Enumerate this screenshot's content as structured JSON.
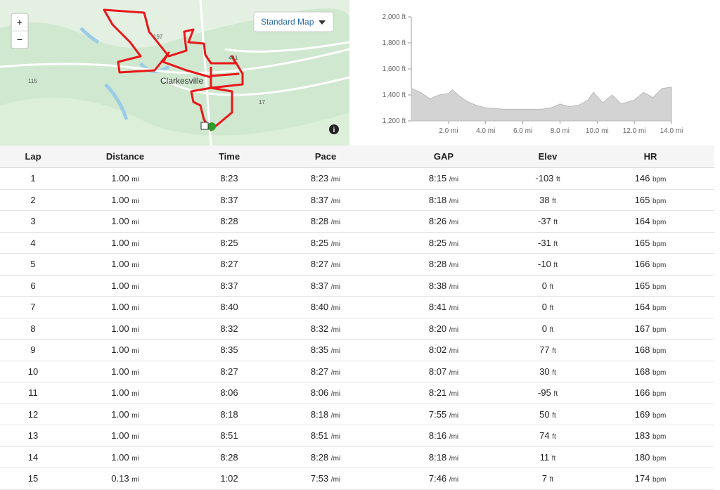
{
  "map": {
    "zoom_in": "+",
    "zoom_out": "−",
    "style_button": "Standard Map",
    "town": "Clarkesville",
    "roads": [
      "115",
      "197",
      "441",
      "17"
    ],
    "info": "i"
  },
  "elevation": {
    "xlim": [
      0,
      14
    ],
    "ylim": [
      1200,
      2000
    ],
    "yticks": [
      {
        "value": 1200,
        "label": "1,200 ft"
      },
      {
        "value": 1400,
        "label": "1,400 ft"
      },
      {
        "value": 1600,
        "label": "1,600 ft"
      },
      {
        "value": 1800,
        "label": "1,800 ft"
      },
      {
        "value": 2000,
        "label": "2,000 ft"
      }
    ],
    "xticks": [
      {
        "value": 2,
        "label": "2.0 mi"
      },
      {
        "value": 4,
        "label": "4.0 mi"
      },
      {
        "value": 6,
        "label": "6.0 mi"
      },
      {
        "value": 8,
        "label": "8.0 mi"
      },
      {
        "value": 10,
        "label": "10.0 mi"
      },
      {
        "value": 12,
        "label": "12.0 mi"
      },
      {
        "value": 14,
        "label": "14.0 mi"
      }
    ],
    "x": [
      0,
      0.5,
      1,
      1.5,
      2,
      2.2,
      2.6,
      3,
      3.5,
      4,
      5,
      6,
      7,
      7.5,
      8,
      8.5,
      9,
      9.5,
      9.8,
      10.3,
      10.8,
      11.3,
      12,
      12.5,
      13,
      13.5,
      14
    ],
    "values": [
      1450,
      1420,
      1370,
      1400,
      1410,
      1440,
      1390,
      1350,
      1320,
      1300,
      1290,
      1290,
      1290,
      1300,
      1330,
      1310,
      1320,
      1360,
      1420,
      1340,
      1400,
      1330,
      1360,
      1420,
      1380,
      1450,
      1460
    ]
  },
  "table": {
    "headers": [
      "Lap",
      "Distance",
      "Time",
      "Pace",
      "GAP",
      "Elev",
      "HR"
    ],
    "units": {
      "distance": "mi",
      "pace": "/mi",
      "gap": "/mi",
      "elev": "ft",
      "hr": "bpm"
    },
    "rows": [
      {
        "lap": "1",
        "distance": "1.00",
        "time": "8:23",
        "pace": "8:23",
        "gap": "8:15",
        "elev": "-103",
        "hr": "146"
      },
      {
        "lap": "2",
        "distance": "1.00",
        "time": "8:37",
        "pace": "8:37",
        "gap": "8:18",
        "elev": "38",
        "hr": "165"
      },
      {
        "lap": "3",
        "distance": "1.00",
        "time": "8:28",
        "pace": "8:28",
        "gap": "8:26",
        "elev": "-37",
        "hr": "164"
      },
      {
        "lap": "4",
        "distance": "1.00",
        "time": "8:25",
        "pace": "8:25",
        "gap": "8:25",
        "elev": "-31",
        "hr": "165"
      },
      {
        "lap": "5",
        "distance": "1.00",
        "time": "8:27",
        "pace": "8:27",
        "gap": "8:28",
        "elev": "-10",
        "hr": "166"
      },
      {
        "lap": "6",
        "distance": "1.00",
        "time": "8:37",
        "pace": "8:37",
        "gap": "8:38",
        "elev": "0",
        "hr": "165"
      },
      {
        "lap": "7",
        "distance": "1.00",
        "time": "8:40",
        "pace": "8:40",
        "gap": "8:41",
        "elev": "0",
        "hr": "164"
      },
      {
        "lap": "8",
        "distance": "1.00",
        "time": "8:32",
        "pace": "8:32",
        "gap": "8:20",
        "elev": "0",
        "hr": "167"
      },
      {
        "lap": "9",
        "distance": "1.00",
        "time": "8:35",
        "pace": "8:35",
        "gap": "8:02",
        "elev": "77",
        "hr": "168"
      },
      {
        "lap": "10",
        "distance": "1.00",
        "time": "8:27",
        "pace": "8:27",
        "gap": "8:07",
        "elev": "30",
        "hr": "168"
      },
      {
        "lap": "11",
        "distance": "1.00",
        "time": "8:06",
        "pace": "8:06",
        "gap": "8:21",
        "elev": "-95",
        "hr": "166"
      },
      {
        "lap": "12",
        "distance": "1.00",
        "time": "8:18",
        "pace": "8:18",
        "gap": "7:55",
        "elev": "50",
        "hr": "169"
      },
      {
        "lap": "13",
        "distance": "1.00",
        "time": "8:51",
        "pace": "8:51",
        "gap": "8:16",
        "elev": "74",
        "hr": "183"
      },
      {
        "lap": "14",
        "distance": "1.00",
        "time": "8:28",
        "pace": "8:28",
        "gap": "8:18",
        "elev": "11",
        "hr": "180"
      },
      {
        "lap": "15",
        "distance": "0.13",
        "time": "1:02",
        "pace": "7:53",
        "gap": "7:46",
        "elev": "7",
        "hr": "174"
      }
    ]
  }
}
